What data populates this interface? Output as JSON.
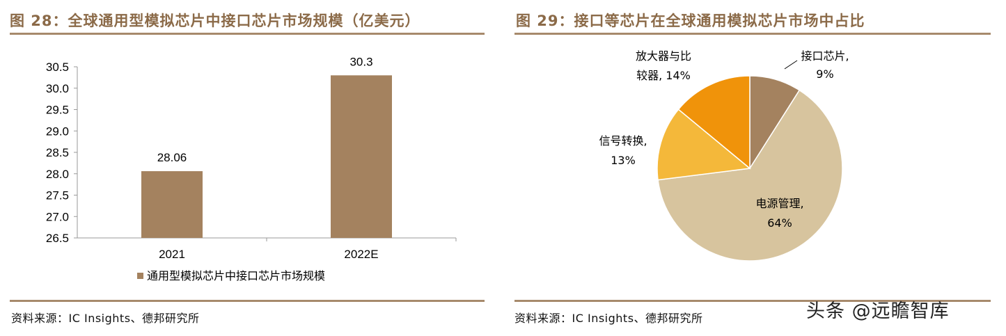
{
  "left": {
    "title": "图 28：全球通用型模拟芯片中接口芯片市场规模（亿美元）",
    "source": "资料来源：IC Insights、德邦研究所"
  },
  "right": {
    "title": "图 29：接口等芯片在全球通用模拟芯片市场中占比",
    "source": "资料来源：IC Insights、德邦研究所"
  },
  "watermark": "头条 @远瞻智库",
  "chart_data": [
    {
      "type": "bar",
      "title": "图 28：全球通用型模拟芯片中接口芯片市场规模（亿美元）",
      "categories": [
        "2021",
        "2022E"
      ],
      "series": [
        {
          "name": "通用型模拟芯片中接口芯片市场规模",
          "values": [
            28.06,
            30.3
          ],
          "color": "#a4825f"
        }
      ],
      "data_labels": [
        "28.06",
        "30.3"
      ],
      "ylim": [
        26.5,
        30.5
      ],
      "yticks": [
        "26.5",
        "27.0",
        "27.5",
        "28.0",
        "28.5",
        "29.0",
        "29.5",
        "30.0",
        "30.5"
      ],
      "grid": false,
      "legend": "bottom"
    },
    {
      "type": "pie",
      "title": "图 29：接口等芯片在全球通用模拟芯片市场中占比",
      "slices": [
        {
          "label_line1": "接口芯片,",
          "label_line2": "9%",
          "value": 9,
          "color": "#a4825f"
        },
        {
          "label_line1": "电源管理,",
          "label_line2": "64%",
          "value": 64,
          "color": "#d7c49e"
        },
        {
          "label_line1": "信号转换,",
          "label_line2": "13%",
          "value": 13,
          "color": "#f4b83a"
        },
        {
          "label_line1": "放大器与比",
          "label_line2": "较器, 14%",
          "value": 14,
          "color": "#f0930a"
        }
      ]
    }
  ]
}
